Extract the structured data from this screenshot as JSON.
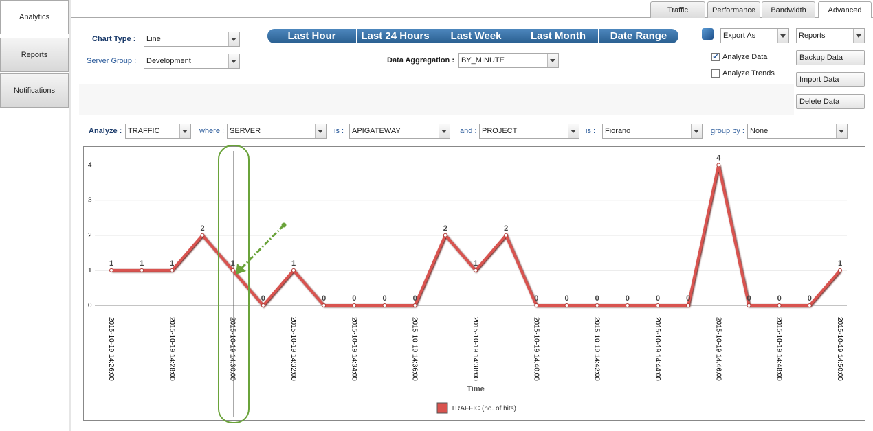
{
  "sidebar": [
    "Analytics",
    "Reports",
    "Notifications"
  ],
  "tabs": [
    "Traffic",
    "Performance",
    "Bandwidth",
    "Advanced"
  ],
  "chart_type": {
    "label": "Chart Type :",
    "value": "Line"
  },
  "server_group": {
    "label": "Server Group :",
    "value": "Development"
  },
  "time_ranges": [
    "Last Hour",
    "Last 24 Hours",
    "Last Week",
    "Last Month",
    "Date Range"
  ],
  "data_aggregation": {
    "label": "Data Aggregation :",
    "value": "BY_MINUTE"
  },
  "export": "Export As",
  "reports": "Reports",
  "checkboxes": [
    {
      "label": "Analyze Data",
      "checked": true
    },
    {
      "label": "Analyze Trends",
      "checked": false
    }
  ],
  "actions": [
    "Backup Data",
    "Import Data",
    "Delete Data"
  ],
  "filters": [
    {
      "label": "Analyze :",
      "value": "TRAFFIC"
    },
    {
      "label": "where :",
      "value": "SERVER"
    },
    {
      "label": "is :",
      "value": "APIGATEWAY"
    },
    {
      "label": "and :",
      "value": "PROJECT"
    },
    {
      "label": "is :",
      "value": "Fiorano"
    },
    {
      "label": "group by :",
      "value": "None"
    }
  ],
  "chart_data": {
    "type": "line",
    "xlabel": "Time",
    "categories": [
      "2015-10-19 14:26:00",
      null,
      "2015-10-19 14:28:00",
      null,
      "2015-10-19 14:30:00",
      null,
      "2015-10-19 14:32:00",
      null,
      "2015-10-19 14:34:00",
      null,
      "2015-10-19 14:36:00",
      null,
      "2015-10-19 14:38:00",
      null,
      "2015-10-19 14:40:00",
      null,
      "2015-10-19 14:42:00",
      null,
      "2015-10-19 14:44:00",
      null,
      "2015-10-19 14:46:00",
      null,
      "2015-10-19 14:48:00",
      null,
      "2015-10-19 14:50:00"
    ],
    "series": [
      {
        "name": "TRAFFIC (no. of hits)",
        "color": "#d9534f",
        "values": [
          1,
          1,
          1,
          2,
          1,
          0,
          1,
          0,
          0,
          0,
          0,
          2,
          1,
          2,
          0,
          0,
          0,
          0,
          0,
          0,
          4,
          0,
          0,
          0,
          1
        ]
      }
    ],
    "ylim": [
      0,
      4.5
    ],
    "yticks": [
      0,
      1,
      2,
      3,
      4
    ],
    "grid": true,
    "legend": "bottom"
  }
}
